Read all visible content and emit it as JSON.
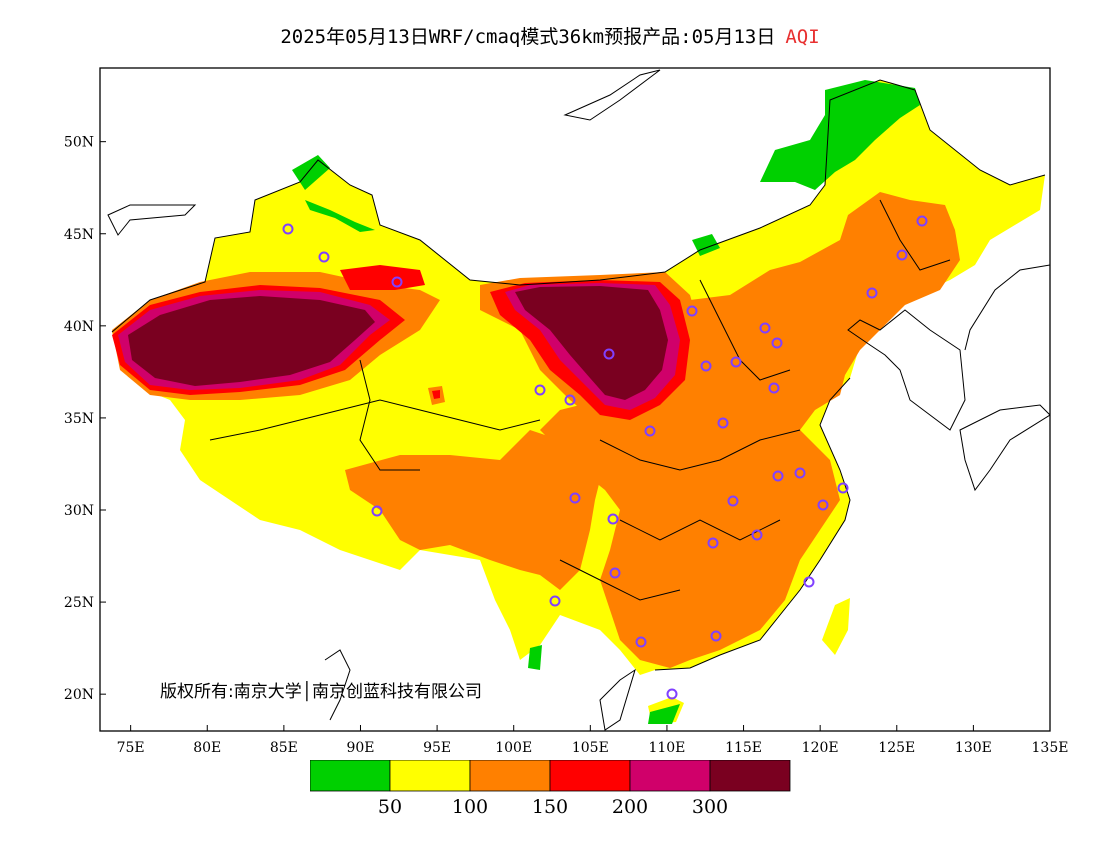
{
  "title": {
    "main": "2025年05月13日WRF/cmaq模式36km预报产品:05月13日",
    "variable": "AQI",
    "variable_color": "#e83030"
  },
  "map": {
    "projection": "lat-lon",
    "lon_range": [
      73,
      135
    ],
    "lat_range": [
      18,
      54
    ],
    "lon_ticks": [
      "75E",
      "80E",
      "85E",
      "90E",
      "95E",
      "100E",
      "105E",
      "110E",
      "115E",
      "120E",
      "125E",
      "130E",
      "135E"
    ],
    "lat_ticks": [
      "20N",
      "25N",
      "30N",
      "35N",
      "40N",
      "45N",
      "50N"
    ],
    "copyright": "版权所有:南京大学│南京创蓝科技有限公司"
  },
  "legend": {
    "colors": [
      "#00d000",
      "#ffff00",
      "#ff8000",
      "#ff0000",
      "#d0006a",
      "#7a0020"
    ],
    "labels": [
      "50",
      "100",
      "150",
      "200",
      "300"
    ]
  },
  "stations_color": "#8040ff"
}
